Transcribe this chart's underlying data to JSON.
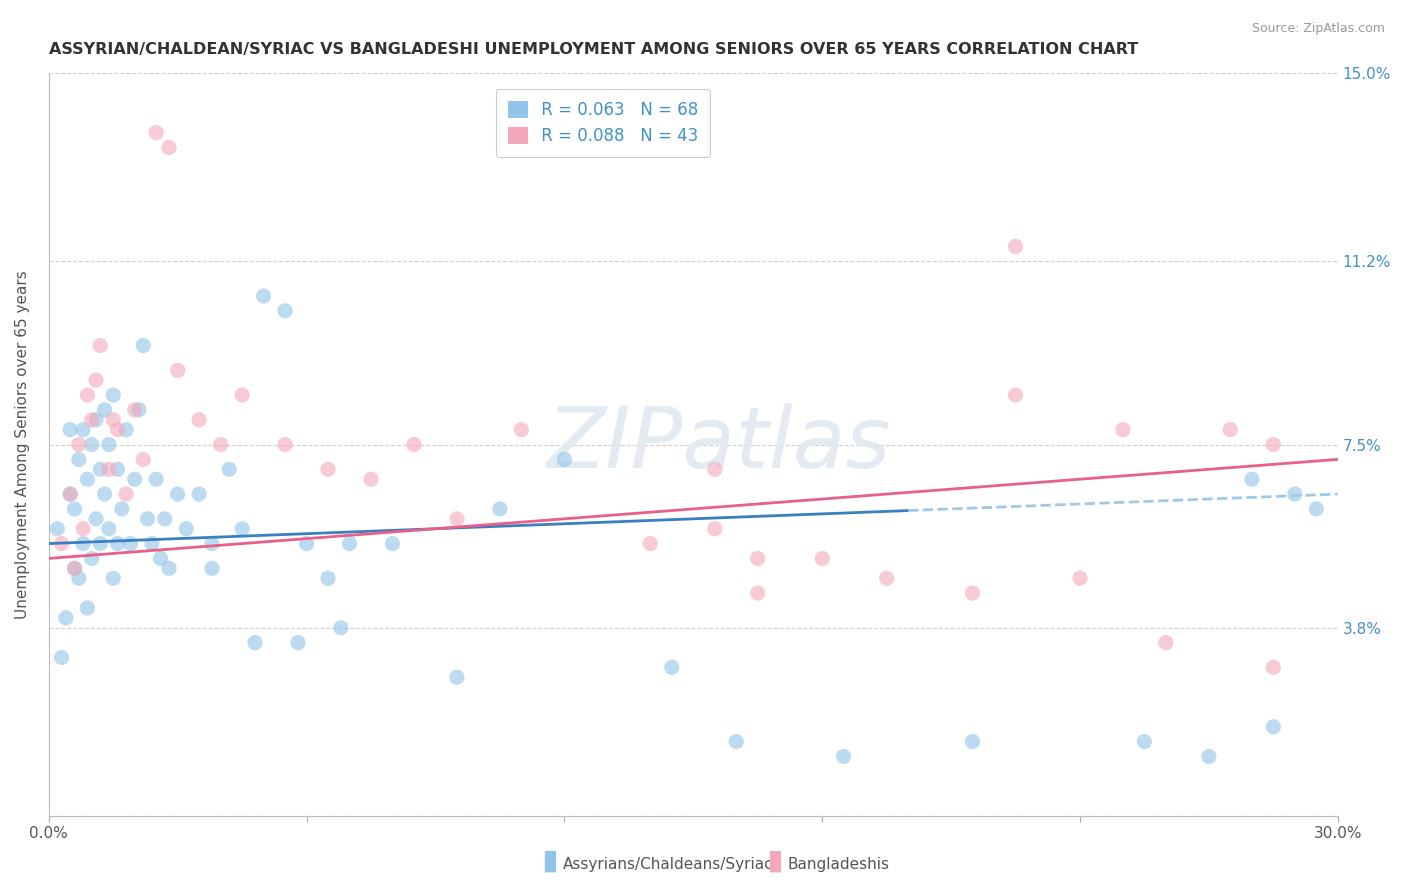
{
  "title": "ASSYRIAN/CHALDEAN/SYRIAC VS BANGLADESHI UNEMPLOYMENT AMONG SENIORS OVER 65 YEARS CORRELATION CHART",
  "source": "Source: ZipAtlas.com",
  "ylabel": "Unemployment Among Seniors over 65 years",
  "xmin": 0.0,
  "xmax": 30.0,
  "ymin": 0.0,
  "ymax": 15.0,
  "yticks": [
    0.0,
    3.8,
    7.5,
    11.2,
    15.0
  ],
  "ytick_labels": [
    "",
    "3.8%",
    "7.5%",
    "11.2%",
    "15.0%"
  ],
  "blue_color": "#90c4e8",
  "pink_color": "#f4a7b9",
  "trend_blue": "#3a80c0",
  "trend_pink": "#e8608a",
  "trend_blue_dashed": "#a0c8e8",
  "legend_r1": "R = 0.063",
  "legend_n1": "N = 68",
  "legend_r2": "R = 0.088",
  "legend_n2": "N = 43",
  "label1": "Assyrians/Chaldeans/Syriacs",
  "label2": "Bangladeshis",
  "watermark": "ZIPatlas",
  "blue_scatter_x": [
    0.2,
    0.3,
    0.4,
    0.5,
    0.5,
    0.6,
    0.6,
    0.7,
    0.7,
    0.8,
    0.8,
    0.9,
    0.9,
    1.0,
    1.0,
    1.1,
    1.1,
    1.2,
    1.2,
    1.3,
    1.3,
    1.4,
    1.4,
    1.5,
    1.5,
    1.6,
    1.6,
    1.7,
    1.8,
    1.9,
    2.0,
    2.1,
    2.2,
    2.3,
    2.4,
    2.5,
    2.6,
    2.7,
    2.8,
    3.0,
    3.2,
    3.5,
    3.8,
    4.2,
    4.5,
    5.0,
    5.5,
    6.0,
    6.5,
    7.0,
    8.0,
    9.5,
    10.5,
    12.0,
    14.5,
    16.0,
    18.5,
    21.5,
    25.5,
    27.0,
    28.0,
    28.5,
    29.0,
    29.5,
    3.8,
    4.8,
    5.8,
    6.8
  ],
  "blue_scatter_y": [
    5.8,
    3.2,
    4.0,
    7.8,
    6.5,
    6.2,
    5.0,
    7.2,
    4.8,
    7.8,
    5.5,
    6.8,
    4.2,
    7.5,
    5.2,
    8.0,
    6.0,
    7.0,
    5.5,
    8.2,
    6.5,
    7.5,
    5.8,
    8.5,
    4.8,
    7.0,
    5.5,
    6.2,
    7.8,
    5.5,
    6.8,
    8.2,
    9.5,
    6.0,
    5.5,
    6.8,
    5.2,
    6.0,
    5.0,
    6.5,
    5.8,
    6.5,
    5.0,
    7.0,
    5.8,
    10.5,
    10.2,
    5.5,
    4.8,
    5.5,
    5.5,
    2.8,
    6.2,
    7.2,
    3.0,
    1.5,
    1.2,
    1.5,
    1.5,
    1.2,
    6.8,
    1.8,
    6.5,
    6.2,
    5.5,
    3.5,
    3.5,
    3.8
  ],
  "pink_scatter_x": [
    0.3,
    0.5,
    0.6,
    0.7,
    0.8,
    0.9,
    1.0,
    1.1,
    1.2,
    1.4,
    1.5,
    1.6,
    1.8,
    2.0,
    2.2,
    2.5,
    2.8,
    3.0,
    3.5,
    4.0,
    4.5,
    5.5,
    6.5,
    7.5,
    8.5,
    9.5,
    11.0,
    14.0,
    15.5,
    16.5,
    18.0,
    19.5,
    21.5,
    22.5,
    24.0,
    25.0,
    26.0,
    27.5,
    28.5,
    15.5,
    16.5,
    22.5,
    28.5
  ],
  "pink_scatter_y": [
    5.5,
    6.5,
    5.0,
    7.5,
    5.8,
    8.5,
    8.0,
    8.8,
    9.5,
    7.0,
    8.0,
    7.8,
    6.5,
    8.2,
    7.2,
    13.8,
    13.5,
    9.0,
    8.0,
    7.5,
    8.5,
    7.5,
    7.0,
    6.8,
    7.5,
    6.0,
    7.8,
    5.5,
    5.8,
    4.5,
    5.2,
    4.8,
    4.5,
    8.5,
    4.8,
    7.8,
    3.5,
    7.8,
    3.0,
    7.0,
    5.2,
    11.5,
    7.5
  ],
  "blue_trend_x0": 0.0,
  "blue_trend_x1": 30.0,
  "blue_trend_y0": 5.5,
  "blue_trend_y1": 6.5,
  "pink_trend_x0": 0.0,
  "pink_trend_x1": 30.0,
  "pink_trend_y0": 5.2,
  "pink_trend_y1": 7.2,
  "blue_solid_end": 20.0,
  "background_color": "#ffffff",
  "grid_color": "#d0d0d0"
}
